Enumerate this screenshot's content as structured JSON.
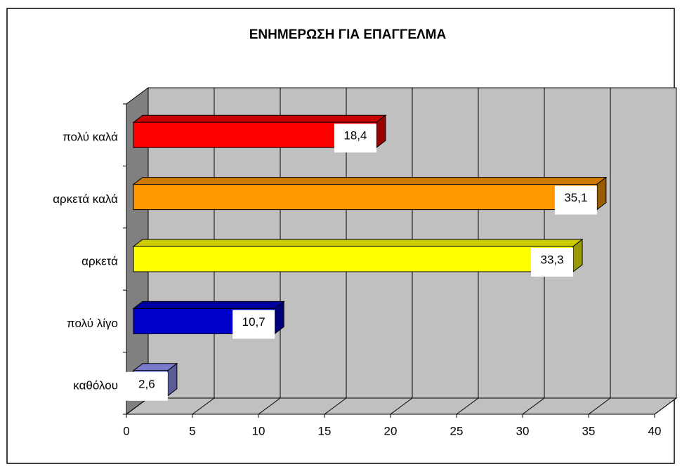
{
  "chart_data": {
    "type": "bar3d_horizontal",
    "title": "ΕΝΗΜΕΡΩΣΗ ΓΙΑ ΕΠΑΓΓΕΛΜΑ",
    "categories": [
      "πολύ καλά",
      "αρκετά καλά",
      "αρκετά",
      "πολύ λίγο",
      "καθόλου"
    ],
    "values": [
      18.4,
      35.1,
      33.3,
      10.7,
      2.6
    ],
    "value_labels": [
      "18,4",
      "35,1",
      "33,3",
      "10,7",
      "2,6"
    ],
    "colors": [
      "#ff0000",
      "#ff9900",
      "#ffff00",
      "#0000cc",
      "#9999ff"
    ],
    "xlim": [
      0,
      40
    ],
    "xticks": [
      0,
      5,
      10,
      15,
      20,
      25,
      30,
      35,
      40
    ],
    "grid": true
  }
}
